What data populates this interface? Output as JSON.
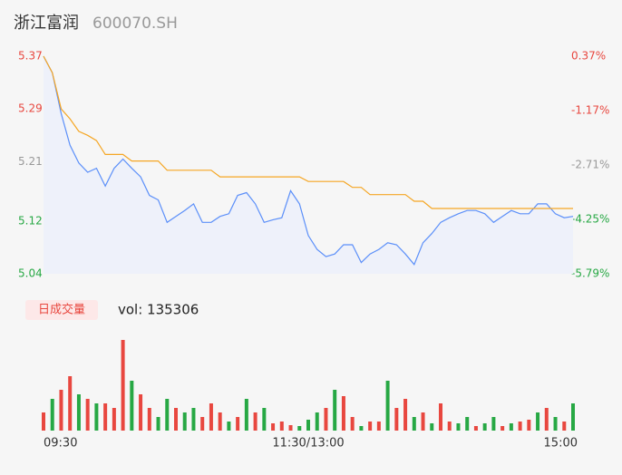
{
  "header": {
    "title": "浙江富润",
    "code": "600070.SH"
  },
  "chart_data": [
    {
      "type": "line",
      "x": [
        0,
        4,
        8,
        12,
        16,
        20,
        24,
        28,
        32,
        36,
        40,
        44,
        48,
        52,
        56,
        60,
        64,
        68,
        72,
        76,
        80,
        84,
        88,
        92,
        96,
        100,
        104,
        108,
        112,
        116,
        120,
        124,
        128,
        132,
        136,
        140,
        144,
        148,
        152,
        156,
        160,
        164,
        168,
        172,
        176,
        180,
        184,
        188,
        192,
        196,
        200,
        204,
        208,
        212,
        216,
        220,
        224,
        228,
        232,
        236,
        240
      ],
      "xlim": [
        0,
        240
      ],
      "xticks": [
        {
          "value": 0,
          "label": "09:30"
        },
        {
          "value": 120,
          "label": "11:30/13:00"
        },
        {
          "value": 240,
          "label": "15:00"
        }
      ],
      "ylim": [
        5.04,
        5.37
      ],
      "yticks": [
        5.37,
        5.29,
        5.21,
        5.12,
        5.04
      ],
      "ytick_colors": [
        "#e8473f",
        "#e8473f",
        "#999999",
        "#27a844",
        "#27a844"
      ],
      "y2lim": [
        -5.79,
        0.37
      ],
      "y2ticks": [
        {
          "value": 0.37,
          "label": "0.37%"
        },
        {
          "value": -1.17,
          "label": "-1.17%"
        },
        {
          "value": -2.71,
          "label": "-2.71%"
        },
        {
          "value": -4.25,
          "label": "-4.25%"
        },
        {
          "value": -5.79,
          "label": "-5.79%"
        }
      ],
      "series": [
        {
          "color": "#5b8ff9",
          "fill": "#eef1fa",
          "values": [
            5.37,
            5.345,
            5.283,
            5.235,
            5.208,
            5.194,
            5.2,
            5.173,
            5.2,
            5.214,
            5.2,
            5.187,
            5.159,
            5.152,
            5.118,
            5.127,
            5.136,
            5.146,
            5.118,
            5.118,
            5.127,
            5.131,
            5.159,
            5.163,
            5.146,
            5.118,
            5.122,
            5.125,
            5.166,
            5.146,
            5.098,
            5.077,
            5.066,
            5.07,
            5.084,
            5.084,
            5.057,
            5.07,
            5.077,
            5.087,
            5.084,
            5.07,
            5.054,
            5.087,
            5.101,
            5.118,
            5.125,
            5.131,
            5.136,
            5.136,
            5.131,
            5.118,
            5.127,
            5.136,
            5.131,
            5.131,
            5.146,
            5.146,
            5.131,
            5.125,
            5.127
          ]
        },
        {
          "color": "#f5a623",
          "values": [
            5.37,
            5.345,
            5.29,
            5.275,
            5.256,
            5.25,
            5.242,
            5.221,
            5.221,
            5.221,
            5.211,
            5.211,
            5.211,
            5.211,
            5.197,
            5.197,
            5.197,
            5.197,
            5.197,
            5.197,
            5.187,
            5.187,
            5.187,
            5.187,
            5.187,
            5.187,
            5.187,
            5.187,
            5.187,
            5.187,
            5.18,
            5.18,
            5.18,
            5.18,
            5.18,
            5.171,
            5.171,
            5.16,
            5.16,
            5.16,
            5.16,
            5.16,
            5.15,
            5.15,
            5.139,
            5.139,
            5.139,
            5.139,
            5.139,
            5.139,
            5.139,
            5.139,
            5.139,
            5.139,
            5.139,
            5.139,
            5.139,
            5.139,
            5.139,
            5.139,
            5.139
          ]
        }
      ]
    },
    {
      "type": "bar",
      "label": "日成交量",
      "summary": "vol: 135306",
      "x": [
        0,
        4,
        8,
        12,
        16,
        20,
        24,
        28,
        32,
        36,
        40,
        44,
        48,
        52,
        56,
        60,
        64,
        68,
        72,
        76,
        80,
        84,
        88,
        92,
        96,
        100,
        104,
        108,
        112,
        116,
        120,
        124,
        128,
        132,
        136,
        140,
        144,
        148,
        152,
        156,
        160,
        164,
        168,
        172,
        176,
        180,
        184,
        188,
        192,
        196,
        200,
        204,
        208,
        212,
        216,
        220,
        224,
        228,
        232,
        236,
        240
      ],
      "xlim": [
        0,
        240
      ],
      "ylim": [
        0,
        100
      ],
      "values": [
        20,
        35,
        45,
        60,
        40,
        35,
        30,
        30,
        25,
        100,
        55,
        40,
        25,
        15,
        35,
        25,
        20,
        25,
        15,
        30,
        20,
        10,
        15,
        35,
        20,
        25,
        8,
        10,
        6,
        5,
        12,
        20,
        25,
        45,
        38,
        15,
        5,
        10,
        10,
        55,
        25,
        35,
        15,
        20,
        8,
        30,
        10,
        8,
        15,
        5,
        8,
        15,
        5,
        8,
        10,
        12,
        20,
        25,
        15,
        10,
        30
      ],
      "colors": [
        "#e8473f",
        "#27a844",
        "#e8473f",
        "#e8473f",
        "#27a844",
        "#e8473f",
        "#27a844",
        "#e8473f",
        "#e8473f",
        "#e8473f",
        "#27a844",
        "#e8473f",
        "#e8473f",
        "#27a844",
        "#27a844",
        "#e8473f",
        "#27a844",
        "#27a844",
        "#e8473f",
        "#e8473f",
        "#e8473f",
        "#27a844",
        "#e8473f",
        "#27a844",
        "#e8473f",
        "#27a844",
        "#e8473f",
        "#e8473f",
        "#e8473f",
        "#27a844",
        "#27a844",
        "#27a844",
        "#e8473f",
        "#27a844",
        "#e8473f",
        "#e8473f",
        "#27a844",
        "#e8473f",
        "#e8473f",
        "#27a844",
        "#e8473f",
        "#e8473f",
        "#27a844",
        "#e8473f",
        "#27a844",
        "#e8473f",
        "#e8473f",
        "#27a844",
        "#27a844",
        "#e8473f",
        "#27a844",
        "#27a844",
        "#e8473f",
        "#27a844",
        "#e8473f",
        "#e8473f",
        "#27a844",
        "#e8473f",
        "#27a844",
        "#e8473f",
        "#27a844"
      ]
    }
  ]
}
